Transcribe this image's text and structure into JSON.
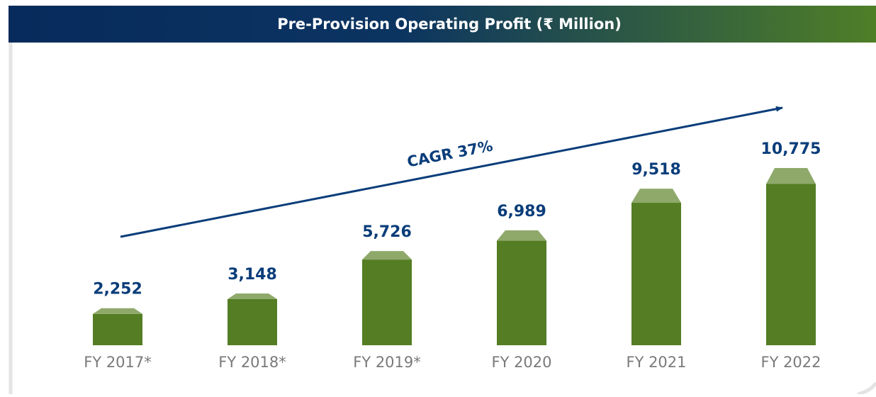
{
  "chart_data": {
    "type": "bar",
    "title": "Pre-Provision Operating Profit (₹ Million)",
    "categories": [
      "FY 2017*",
      "FY 2018*",
      "FY 2019*",
      "FY 2020",
      "FY 2021",
      "FY 2022"
    ],
    "values": [
      2252,
      3148,
      5726,
      6989,
      9518,
      10775
    ],
    "value_labels": [
      "2,252",
      "3,148",
      "5,726",
      "6,989",
      "9,518",
      "10,775"
    ],
    "color": "#547d24",
    "annotation": "CAGR 37%"
  }
}
